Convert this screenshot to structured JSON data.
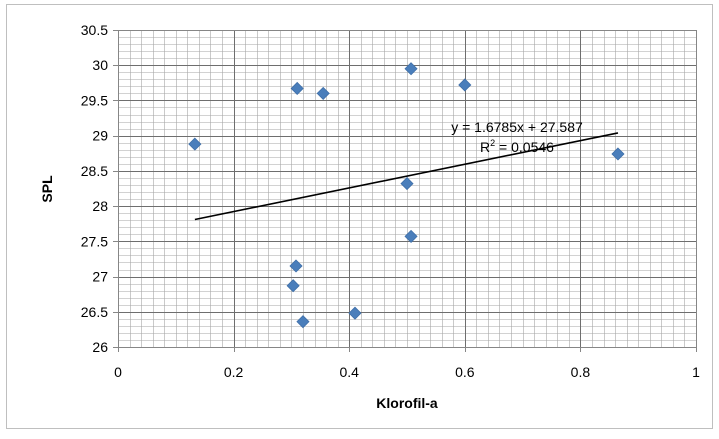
{
  "chart_data": {
    "type": "scatter",
    "xlabel": "Klorofil-a",
    "ylabel": "SPL",
    "xlim": [
      0,
      1
    ],
    "ylim": [
      26,
      30.5
    ],
    "x_ticks": [
      "0",
      "0.2",
      "0.4",
      "0.6",
      "0.8",
      "1"
    ],
    "y_ticks": [
      "26",
      "26.5",
      "27",
      "27.5",
      "28",
      "28.5",
      "29",
      "29.5",
      "30",
      "30.5"
    ],
    "grid": true,
    "legend": "none",
    "marker_color": "#4A7EBB",
    "series": [
      {
        "marker": "diamond",
        "points": [
          {
            "x": 0.133,
            "y": 28.88
          },
          {
            "x": 0.31,
            "y": 29.67
          },
          {
            "x": 0.355,
            "y": 29.6
          },
          {
            "x": 0.507,
            "y": 29.95
          },
          {
            "x": 0.6,
            "y": 29.72
          },
          {
            "x": 0.865,
            "y": 28.74
          },
          {
            "x": 0.5,
            "y": 28.32
          },
          {
            "x": 0.507,
            "y": 27.57
          },
          {
            "x": 0.308,
            "y": 27.15
          },
          {
            "x": 0.303,
            "y": 26.87
          },
          {
            "x": 0.32,
            "y": 26.36
          },
          {
            "x": 0.41,
            "y": 26.48
          }
        ]
      }
    ],
    "trendline": {
      "type": "linear",
      "slope": 1.6785,
      "intercept": 27.587,
      "x_range": [
        0.133,
        0.865
      ],
      "equation_label": "y = 1.6785x + 27.587",
      "r2_prefix": "R",
      "r2_sup": "2",
      "r2_value": " = 0.0546"
    }
  }
}
